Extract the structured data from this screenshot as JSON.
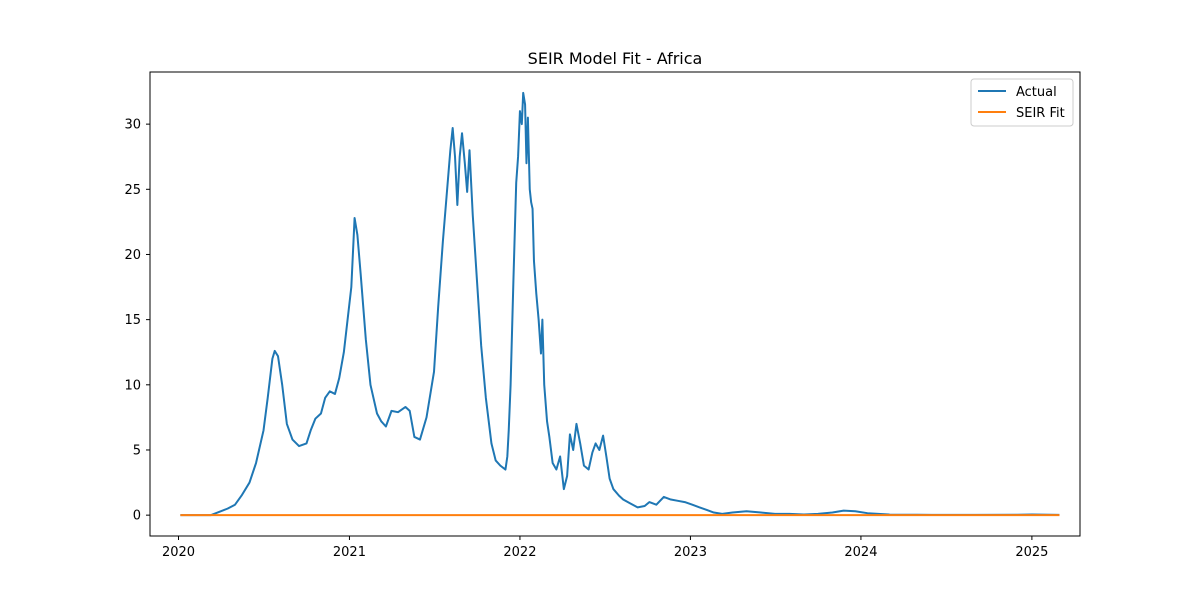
{
  "chart_data": {
    "type": "line",
    "title": "SEIR Model Fit - Africa",
    "xlabel": "",
    "ylabel": "",
    "x_axis_type": "date",
    "xlim": [
      "2019-11-01",
      "2025-04-14"
    ],
    "ylim": [
      -1.6,
      34.0
    ],
    "x_ticks": [
      {
        "label": "2020",
        "date": "2020-01-01"
      },
      {
        "label": "2021",
        "date": "2021-01-01"
      },
      {
        "label": "2022",
        "date": "2022-01-01"
      },
      {
        "label": "2023",
        "date": "2023-01-01"
      },
      {
        "label": "2024",
        "date": "2024-01-01"
      },
      {
        "label": "2025",
        "date": "2025-01-01"
      }
    ],
    "y_ticks": [
      0,
      5,
      10,
      15,
      20,
      25,
      30
    ],
    "grid": false,
    "legend_position": "top-right",
    "series": [
      {
        "name": "Actual",
        "color": "#1f77b4",
        "points": [
          [
            "2020-01-05",
            0
          ],
          [
            "2020-03-10",
            0
          ],
          [
            "2020-04-01",
            0.3
          ],
          [
            "2020-04-15",
            0.5
          ],
          [
            "2020-05-01",
            0.8
          ],
          [
            "2020-05-15",
            1.5
          ],
          [
            "2020-06-01",
            2.5
          ],
          [
            "2020-06-15",
            4.0
          ],
          [
            "2020-07-01",
            6.5
          ],
          [
            "2020-07-10",
            9.0
          ],
          [
            "2020-07-20",
            12.0
          ],
          [
            "2020-07-25",
            12.6
          ],
          [
            "2020-08-01",
            12.2
          ],
          [
            "2020-08-10",
            10.0
          ],
          [
            "2020-08-20",
            7.0
          ],
          [
            "2020-09-01",
            5.8
          ],
          [
            "2020-09-15",
            5.3
          ],
          [
            "2020-10-01",
            5.5
          ],
          [
            "2020-10-10",
            6.5
          ],
          [
            "2020-10-20",
            7.4
          ],
          [
            "2020-11-01",
            7.8
          ],
          [
            "2020-11-10",
            9.0
          ],
          [
            "2020-11-20",
            9.5
          ],
          [
            "2020-12-01",
            9.3
          ],
          [
            "2020-12-10",
            10.5
          ],
          [
            "2020-12-20",
            12.5
          ],
          [
            "2020-12-28",
            15.0
          ],
          [
            "2021-01-05",
            17.5
          ],
          [
            "2021-01-12",
            22.8
          ],
          [
            "2021-01-18",
            21.5
          ],
          [
            "2021-01-25",
            18.5
          ],
          [
            "2021-02-05",
            13.5
          ],
          [
            "2021-02-15",
            10.0
          ],
          [
            "2021-03-01",
            7.8
          ],
          [
            "2021-03-10",
            7.2
          ],
          [
            "2021-03-20",
            6.8
          ],
          [
            "2021-04-01",
            8.0
          ],
          [
            "2021-04-15",
            7.9
          ],
          [
            "2021-05-01",
            8.3
          ],
          [
            "2021-05-10",
            8.0
          ],
          [
            "2021-05-20",
            6.0
          ],
          [
            "2021-06-01",
            5.8
          ],
          [
            "2021-06-15",
            7.5
          ],
          [
            "2021-07-01",
            11.0
          ],
          [
            "2021-07-10",
            16.0
          ],
          [
            "2021-07-20",
            21.0
          ],
          [
            "2021-07-28",
            24.5
          ],
          [
            "2021-08-05",
            28.0
          ],
          [
            "2021-08-10",
            29.7
          ],
          [
            "2021-08-15",
            27.5
          ],
          [
            "2021-08-20",
            23.8
          ],
          [
            "2021-08-25",
            27.5
          ],
          [
            "2021-08-30",
            29.3
          ],
          [
            "2021-09-05",
            27.0
          ],
          [
            "2021-09-10",
            24.8
          ],
          [
            "2021-09-15",
            28.0
          ],
          [
            "2021-09-22",
            23.0
          ],
          [
            "2021-10-01",
            18.0
          ],
          [
            "2021-10-10",
            13.0
          ],
          [
            "2021-10-20",
            9.0
          ],
          [
            "2021-11-01",
            5.5
          ],
          [
            "2021-11-10",
            4.2
          ],
          [
            "2021-11-20",
            3.8
          ],
          [
            "2021-12-01",
            3.5
          ],
          [
            "2021-12-05",
            4.5
          ],
          [
            "2021-12-08",
            6.5
          ],
          [
            "2021-12-12",
            10.0
          ],
          [
            "2021-12-18",
            18.0
          ],
          [
            "2021-12-24",
            25.5
          ],
          [
            "2021-12-28",
            27.5
          ],
          [
            "2022-01-01",
            31.0
          ],
          [
            "2022-01-05",
            30.0
          ],
          [
            "2022-01-08",
            32.4
          ],
          [
            "2022-01-12",
            31.5
          ],
          [
            "2022-01-15",
            27.0
          ],
          [
            "2022-01-18",
            30.5
          ],
          [
            "2022-01-22",
            25.0
          ],
          [
            "2022-01-25",
            24.0
          ],
          [
            "2022-01-28",
            23.5
          ],
          [
            "2022-01-31",
            19.5
          ],
          [
            "2022-02-05",
            17.0
          ],
          [
            "2022-02-10",
            15.0
          ],
          [
            "2022-02-15",
            12.4
          ],
          [
            "2022-02-18",
            15.0
          ],
          [
            "2022-02-22",
            10.0
          ],
          [
            "2022-02-28",
            7.2
          ],
          [
            "2022-03-05",
            6.0
          ],
          [
            "2022-03-12",
            4.0
          ],
          [
            "2022-03-20",
            3.5
          ],
          [
            "2022-03-28",
            4.5
          ],
          [
            "2022-04-05",
            2.0
          ],
          [
            "2022-04-12",
            3.0
          ],
          [
            "2022-04-18",
            6.2
          ],
          [
            "2022-04-25",
            5.0
          ],
          [
            "2022-05-02",
            7.0
          ],
          [
            "2022-05-10",
            5.5
          ],
          [
            "2022-05-18",
            3.8
          ],
          [
            "2022-05-28",
            3.5
          ],
          [
            "2022-06-05",
            4.8
          ],
          [
            "2022-06-12",
            5.5
          ],
          [
            "2022-06-20",
            5.0
          ],
          [
            "2022-06-28",
            6.1
          ],
          [
            "2022-07-05",
            4.5
          ],
          [
            "2022-07-12",
            2.8
          ],
          [
            "2022-07-20",
            2.0
          ],
          [
            "2022-08-01",
            1.5
          ],
          [
            "2022-08-10",
            1.2
          ],
          [
            "2022-08-25",
            0.9
          ],
          [
            "2022-09-10",
            0.6
          ],
          [
            "2022-09-25",
            0.7
          ],
          [
            "2022-10-05",
            1.0
          ],
          [
            "2022-10-20",
            0.8
          ],
          [
            "2022-11-05",
            1.4
          ],
          [
            "2022-11-20",
            1.2
          ],
          [
            "2022-12-05",
            1.1
          ],
          [
            "2022-12-20",
            1.0
          ],
          [
            "2023-01-05",
            0.8
          ],
          [
            "2023-01-20",
            0.6
          ],
          [
            "2023-02-05",
            0.4
          ],
          [
            "2023-02-20",
            0.2
          ],
          [
            "2023-03-10",
            0.1
          ],
          [
            "2023-04-01",
            0.2
          ],
          [
            "2023-05-01",
            0.3
          ],
          [
            "2023-06-01",
            0.2
          ],
          [
            "2023-07-01",
            0.1
          ],
          [
            "2023-08-01",
            0.1
          ],
          [
            "2023-09-01",
            0.05
          ],
          [
            "2023-10-01",
            0.1
          ],
          [
            "2023-11-01",
            0.2
          ],
          [
            "2023-11-25",
            0.35
          ],
          [
            "2023-12-20",
            0.3
          ],
          [
            "2024-01-15",
            0.15
          ],
          [
            "2024-03-01",
            0.05
          ],
          [
            "2024-06-01",
            0.02
          ],
          [
            "2024-09-01",
            0.02
          ],
          [
            "2024-12-01",
            0.03
          ],
          [
            "2025-01-01",
            0.05
          ],
          [
            "2025-03-01",
            0.02
          ]
        ]
      },
      {
        "name": "SEIR Fit",
        "color": "#ff7f0e",
        "points": [
          [
            "2020-01-05",
            0
          ],
          [
            "2025-03-01",
            0
          ]
        ]
      }
    ]
  }
}
